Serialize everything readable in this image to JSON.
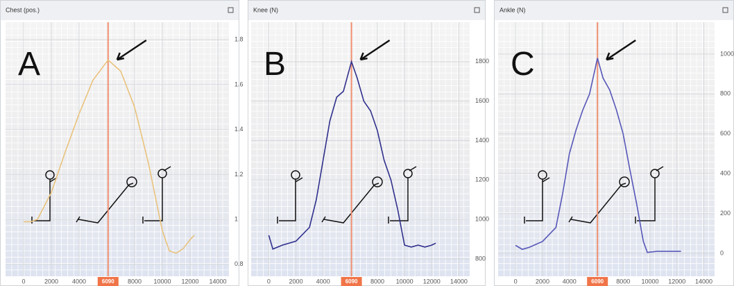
{
  "chart_data": [
    {
      "type": "line",
      "title": "Chest (pos.)",
      "annotation": "A",
      "color": "#e9c27c",
      "x": [
        0,
        500,
        1000,
        2000,
        3000,
        4000,
        5000,
        6090,
        7000,
        8000,
        9000,
        10000,
        10500,
        11000,
        11500,
        12000,
        12300
      ],
      "values": [
        0.99,
        0.99,
        1.0,
        1.12,
        1.3,
        1.47,
        1.62,
        1.71,
        1.66,
        1.5,
        1.25,
        0.95,
        0.86,
        0.85,
        0.87,
        0.91,
        0.93
      ],
      "xlim": [
        -1300,
        14800
      ],
      "ylim": [
        0.747,
        1.878
      ],
      "xticks": [
        0,
        2000,
        4000,
        8000,
        10000,
        12000,
        14000
      ],
      "yticks": [
        0.8,
        1,
        1.2,
        1.4,
        1.6,
        1.8
      ],
      "cursor": 6090
    },
    {
      "type": "line",
      "title": "Knee (N)",
      "annotation": "B",
      "color": "#2f2f8c",
      "x": [
        0,
        300,
        1000,
        2000,
        3000,
        3500,
        4000,
        4500,
        5000,
        5500,
        6090,
        6500,
        7000,
        7500,
        8000,
        8500,
        9000,
        9500,
        10000,
        10500,
        11000,
        11500,
        12000,
        12300
      ],
      "values": [
        920,
        850,
        870,
        890,
        960,
        1100,
        1300,
        1500,
        1620,
        1650,
        1800,
        1720,
        1600,
        1550,
        1450,
        1300,
        1200,
        1050,
        870,
        860,
        870,
        860,
        870,
        880
      ],
      "xlim": [
        -1300,
        14800
      ],
      "ylim": [
        712,
        2000
      ],
      "xticks": [
        0,
        2000,
        4000,
        8000,
        10000,
        12000,
        14000
      ],
      "yticks": [
        800,
        1000,
        1200,
        1400,
        1600,
        1800
      ],
      "cursor": 6090
    },
    {
      "type": "line",
      "title": "Ankle (N)",
      "annotation": "C",
      "color": "#5656b8",
      "x": [
        0,
        500,
        1000,
        2000,
        3000,
        3500,
        4000,
        4500,
        5000,
        5500,
        6090,
        6500,
        7000,
        7500,
        8000,
        8500,
        9000,
        9500,
        9800,
        10500,
        12000,
        12300
      ],
      "values": [
        40,
        20,
        30,
        60,
        130,
        300,
        500,
        620,
        720,
        800,
        980,
        880,
        820,
        720,
        600,
        420,
        250,
        60,
        5,
        10,
        10,
        10
      ],
      "xlim": [
        -1300,
        14800
      ],
      "ylim": [
        -115,
        1160
      ],
      "xticks": [
        0,
        2000,
        4000,
        8000,
        10000,
        12000,
        14000
      ],
      "yticks": [
        0,
        200,
        400,
        600,
        800,
        1000
      ],
      "cursor": 6090
    }
  ]
}
